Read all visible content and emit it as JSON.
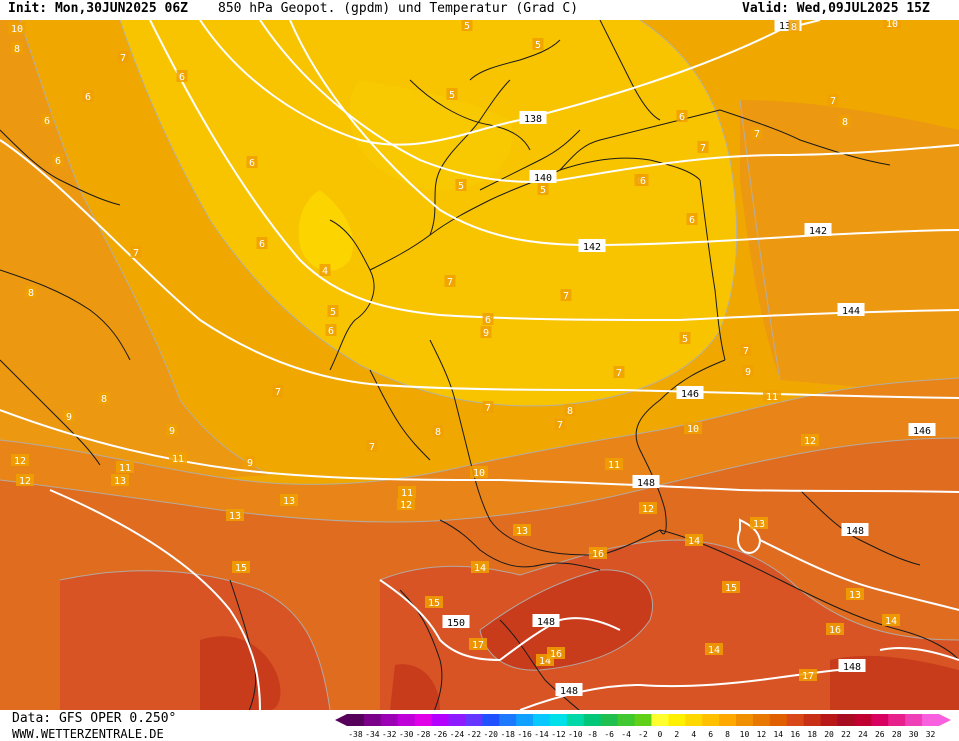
{
  "header": {
    "init": "Init: Mon,30JUN2025 06Z",
    "title": "850 hPa Geopot. (gpdm) und Temperatur (Grad C)",
    "valid": "Valid: Wed,09JUL2025 15Z"
  },
  "footer": {
    "data_source": "Data: GFS OPER 0.250°",
    "website": "WWW.WETTERZENTRALE.DE"
  },
  "legend": {
    "ticks": [
      "-38",
      "-34",
      "-32",
      "-30",
      "-28",
      "-26",
      "-24",
      "-22",
      "-20",
      "-18",
      "-16",
      "-14",
      "-12",
      "-10",
      "-8",
      "-6",
      "-4",
      "-2",
      "0",
      "2",
      "4",
      "6",
      "8",
      "10",
      "12",
      "14",
      "16",
      "18",
      "20",
      "22",
      "24",
      "26",
      "28",
      "30",
      "32"
    ],
    "colors": [
      "#55005a",
      "#7a0089",
      "#9b00b5",
      "#c000d8",
      "#e000e8",
      "#b400ff",
      "#8c1cff",
      "#6436ff",
      "#2050ff",
      "#1c78ff",
      "#10a0ff",
      "#08c8ff",
      "#00e0e8",
      "#00d8a8",
      "#00c878",
      "#20c050",
      "#40c830",
      "#60d018",
      "#ffff30",
      "#fff000",
      "#ffd800",
      "#ffc000",
      "#ffa800",
      "#f09000",
      "#e87800",
      "#e06000",
      "#d84818",
      "#c83018",
      "#b81818",
      "#a80c20",
      "#c00030",
      "#d80060",
      "#e8208c",
      "#f040b8",
      "#f860e0"
    ]
  },
  "geopotential_labels": [
    "138",
    "138",
    "140",
    "142",
    "142",
    "144",
    "146",
    "146",
    "148",
    "148",
    "148",
    "148",
    "148",
    "150"
  ],
  "temperature_labels": [
    "4",
    "5",
    "5",
    "5",
    "5",
    "5",
    "5",
    "5",
    "6",
    "6",
    "6",
    "6",
    "6",
    "6",
    "6",
    "6",
    "6",
    "6",
    "6",
    "6",
    "7",
    "7",
    "7",
    "7",
    "7",
    "7",
    "7",
    "7",
    "7",
    "7",
    "7",
    "7",
    "7",
    "8",
    "8",
    "8",
    "8",
    "8",
    "8",
    "8",
    "9",
    "9",
    "9",
    "9",
    "9",
    "9",
    "10",
    "10",
    "10",
    "10",
    "11",
    "11",
    "11",
    "11",
    "11",
    "12",
    "12",
    "12",
    "12",
    "12",
    "13",
    "13",
    "13",
    "13",
    "13",
    "13",
    "14",
    "14",
    "14",
    "14",
    "14",
    "15",
    "15",
    "15",
    "16",
    "16",
    "16",
    "17",
    "17"
  ]
}
